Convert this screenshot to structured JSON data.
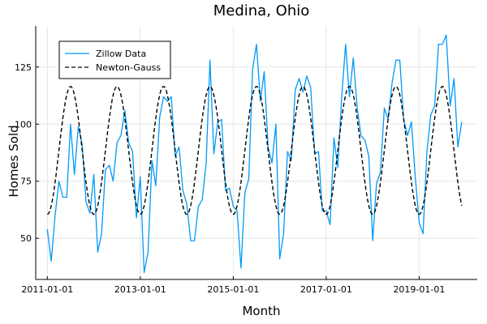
{
  "chart_data": {
    "type": "line",
    "title": "Medina, Ohio",
    "xlabel": "Month",
    "ylabel": "Homes Sold",
    "x_start": "2011-01",
    "x_end": "2019-12",
    "xlim": [
      "2010-10",
      "2020-04"
    ],
    "ylim": [
      32,
      143
    ],
    "x_ticks": [
      "2011-01-01",
      "2013-01-01",
      "2015-01-01",
      "2017-01-01",
      "2019-01-01"
    ],
    "y_ticks": [
      50,
      75,
      100,
      125
    ],
    "grid": true,
    "legend_position": "top-left",
    "series": [
      {
        "name": "Zillow Data",
        "color": "#009af9",
        "style": "solid",
        "values": [
          54,
          40,
          60,
          75,
          68,
          68,
          100,
          78,
          99,
          91,
          66,
          61,
          78,
          44,
          52,
          80,
          82,
          75,
          92,
          95,
          106,
          92,
          88,
          59,
          77,
          35,
          44,
          84,
          73,
          103,
          112,
          110,
          112,
          86,
          90,
          71,
          65,
          49,
          49,
          64,
          67,
          83,
          128,
          87,
          101,
          102,
          71,
          72,
          64,
          62,
          37,
          70,
          76,
          124,
          135,
          110,
          123,
          90,
          83,
          100,
          41,
          52,
          88,
          84,
          115,
          120,
          114,
          121,
          116,
          87,
          88,
          62,
          62,
          56,
          94,
          81,
          112,
          135,
          112,
          129,
          107,
          95,
          93,
          86,
          49,
          74,
          79,
          107,
          102,
          118,
          128,
          128,
          102,
          95,
          101,
          77,
          57,
          52,
          88,
          104,
          108,
          135,
          135,
          139,
          108,
          120,
          90,
          101
        ]
      },
      {
        "name": "Newton-Gauss",
        "color": "#000000",
        "style": "dashed",
        "model": {
          "mean": 88.5,
          "amplitude": 28,
          "period_months": 12,
          "peak_month": 7
        }
      }
    ]
  }
}
